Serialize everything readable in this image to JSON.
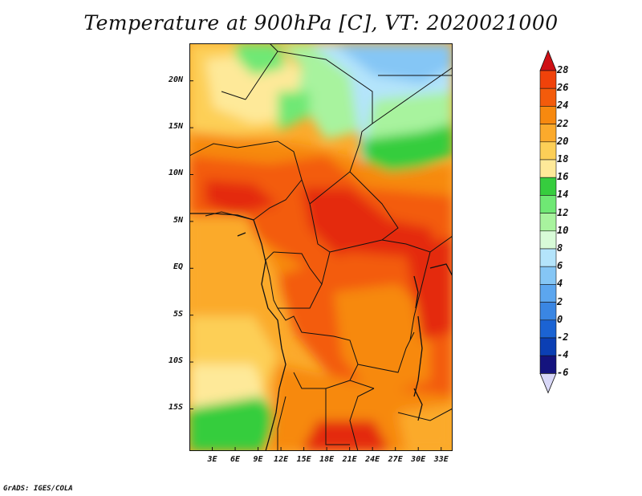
{
  "title": "Temperature at 900hPa [C], VT: 2020021000",
  "credit": "GrADS: IGES/COLA",
  "map": {
    "lon_range": [
      0,
      34.5
    ],
    "lat_range": [
      -19.5,
      24
    ],
    "lat_ticks": [
      {
        "value": 20,
        "label": "20N"
      },
      {
        "value": 15,
        "label": "15N"
      },
      {
        "value": 10,
        "label": "10N"
      },
      {
        "value": 5,
        "label": "5N"
      },
      {
        "value": 0,
        "label": "EQ"
      },
      {
        "value": -5,
        "label": "5S"
      },
      {
        "value": -10,
        "label": "10S"
      },
      {
        "value": -15,
        "label": "15S"
      }
    ],
    "lon_ticks": [
      {
        "value": 3,
        "label": "3E"
      },
      {
        "value": 6,
        "label": "6E"
      },
      {
        "value": 9,
        "label": "9E"
      },
      {
        "value": 12,
        "label": "12E"
      },
      {
        "value": 15,
        "label": "15E"
      },
      {
        "value": 18,
        "label": "18E"
      },
      {
        "value": 21,
        "label": "21E"
      },
      {
        "value": 24,
        "label": "24E"
      },
      {
        "value": 27,
        "label": "27E"
      },
      {
        "value": 30,
        "label": "30E"
      },
      {
        "value": 33,
        "label": "33E"
      }
    ]
  },
  "colorbar": {
    "levels": [
      {
        "label": "28",
        "color": "#a50000"
      },
      {
        "label": "26",
        "color": "#e42a0a"
      },
      {
        "label": "24",
        "color": "#f35b0b"
      },
      {
        "label": "22",
        "color": "#f7890f"
      },
      {
        "label": "20",
        "color": "#fbaa2c"
      },
      {
        "label": "18",
        "color": "#fdcf57"
      },
      {
        "label": "16",
        "color": "#fee999"
      },
      {
        "label": "14",
        "color": "#fefecb"
      },
      {
        "label": "12",
        "color": "#36cd3e"
      },
      {
        "label": "10",
        "color": "#6fe874"
      },
      {
        "label": "8",
        "color": "#a8f39e"
      },
      {
        "label": "6",
        "color": "#d8fbd8"
      },
      {
        "label": "4",
        "color": "#b4e4fb"
      },
      {
        "label": "2",
        "color": "#85c6f5"
      },
      {
        "label": "0",
        "color": "#5ca6ef"
      },
      {
        "label": "-2",
        "color": "#3a86e3"
      },
      {
        "label": "-4",
        "color": "#1b63d3"
      },
      {
        "label": "-6",
        "color": "#0b3fb4"
      }
    ],
    "bottom_color": "#14137e",
    "over_color": "#ce1015",
    "under_color": "#d8d7f7"
  }
}
